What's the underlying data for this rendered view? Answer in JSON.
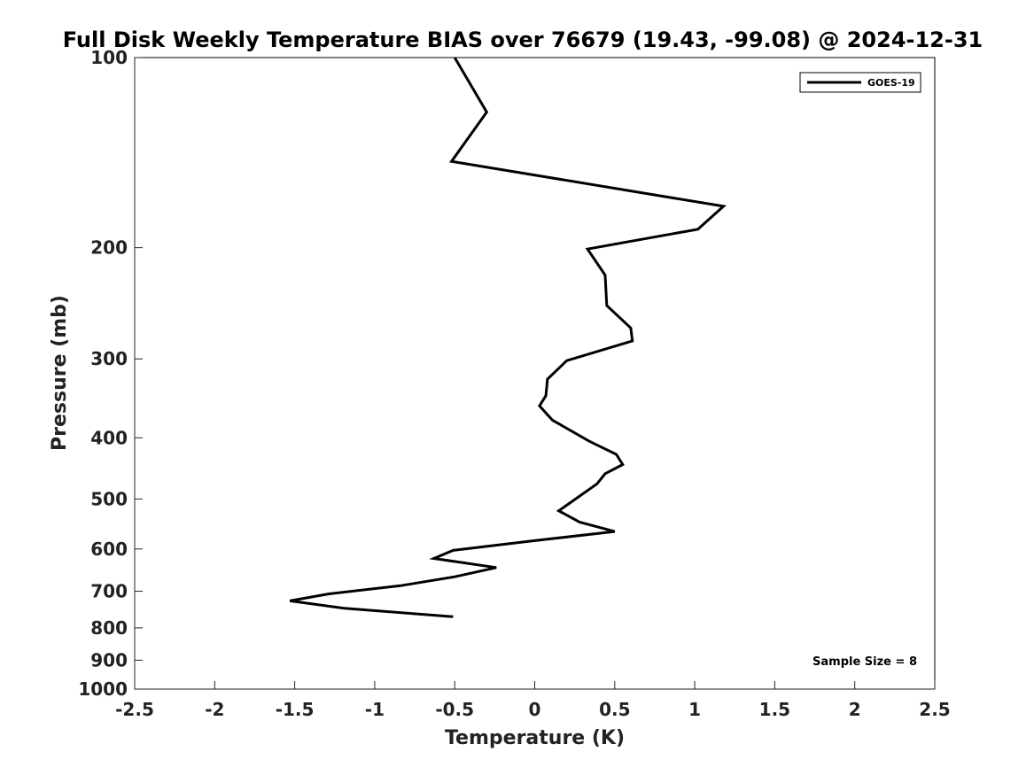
{
  "chart_data": {
    "type": "line",
    "title": "Full Disk Weekly Temperature BIAS over 76679 (19.43, -99.08) @ 2024-12-31",
    "xlabel": "Temperature (K)",
    "ylabel": "Pressure (mb)",
    "xlim": [
      -2.5,
      2.5
    ],
    "ylim": [
      1000,
      100
    ],
    "yscale": "log",
    "xticks": [
      -2.5,
      -2,
      -1.5,
      -1,
      -0.5,
      0,
      0.5,
      1,
      1.5,
      2,
      2.5
    ],
    "xtick_labels": [
      "-2.5",
      "-2",
      "-1.5",
      "-1",
      "-0.5",
      "0",
      "0.5",
      "1",
      "1.5",
      "2",
      "2.5"
    ],
    "yticks": [
      100,
      200,
      300,
      400,
      500,
      600,
      700,
      800,
      900,
      1000
    ],
    "ytick_labels": [
      "100",
      "200",
      "300",
      "400",
      "500",
      "600",
      "700",
      "800",
      "900",
      "1000"
    ],
    "grid": false,
    "legend_position": "top-right",
    "annotation": "Sample Size = 8",
    "series": [
      {
        "name": "GOES-19",
        "color": "#000000",
        "points": [
          {
            "x": -0.5,
            "p": 100
          },
          {
            "x": -0.3,
            "p": 122
          },
          {
            "x": -0.52,
            "p": 146
          },
          {
            "x": 1.18,
            "p": 172
          },
          {
            "x": 1.02,
            "p": 187
          },
          {
            "x": 0.33,
            "p": 201
          },
          {
            "x": 0.44,
            "p": 221
          },
          {
            "x": 0.45,
            "p": 247
          },
          {
            "x": 0.6,
            "p": 268
          },
          {
            "x": 0.61,
            "p": 281
          },
          {
            "x": 0.2,
            "p": 302
          },
          {
            "x": 0.08,
            "p": 323
          },
          {
            "x": 0.07,
            "p": 343
          },
          {
            "x": 0.03,
            "p": 356
          },
          {
            "x": 0.11,
            "p": 375
          },
          {
            "x": 0.34,
            "p": 405
          },
          {
            "x": 0.51,
            "p": 425
          },
          {
            "x": 0.55,
            "p": 441
          },
          {
            "x": 0.44,
            "p": 456
          },
          {
            "x": 0.39,
            "p": 473
          },
          {
            "x": 0.25,
            "p": 501
          },
          {
            "x": 0.15,
            "p": 522
          },
          {
            "x": 0.28,
            "p": 544
          },
          {
            "x": 0.5,
            "p": 563
          },
          {
            "x": 0.0,
            "p": 582
          },
          {
            "x": -0.51,
            "p": 603
          },
          {
            "x": -0.63,
            "p": 621
          },
          {
            "x": -0.24,
            "p": 642
          },
          {
            "x": -0.5,
            "p": 664
          },
          {
            "x": -0.84,
            "p": 686
          },
          {
            "x": -1.29,
            "p": 707
          },
          {
            "x": -1.53,
            "p": 725
          },
          {
            "x": -1.19,
            "p": 745
          },
          {
            "x": -0.51,
            "p": 768
          }
        ]
      }
    ]
  }
}
